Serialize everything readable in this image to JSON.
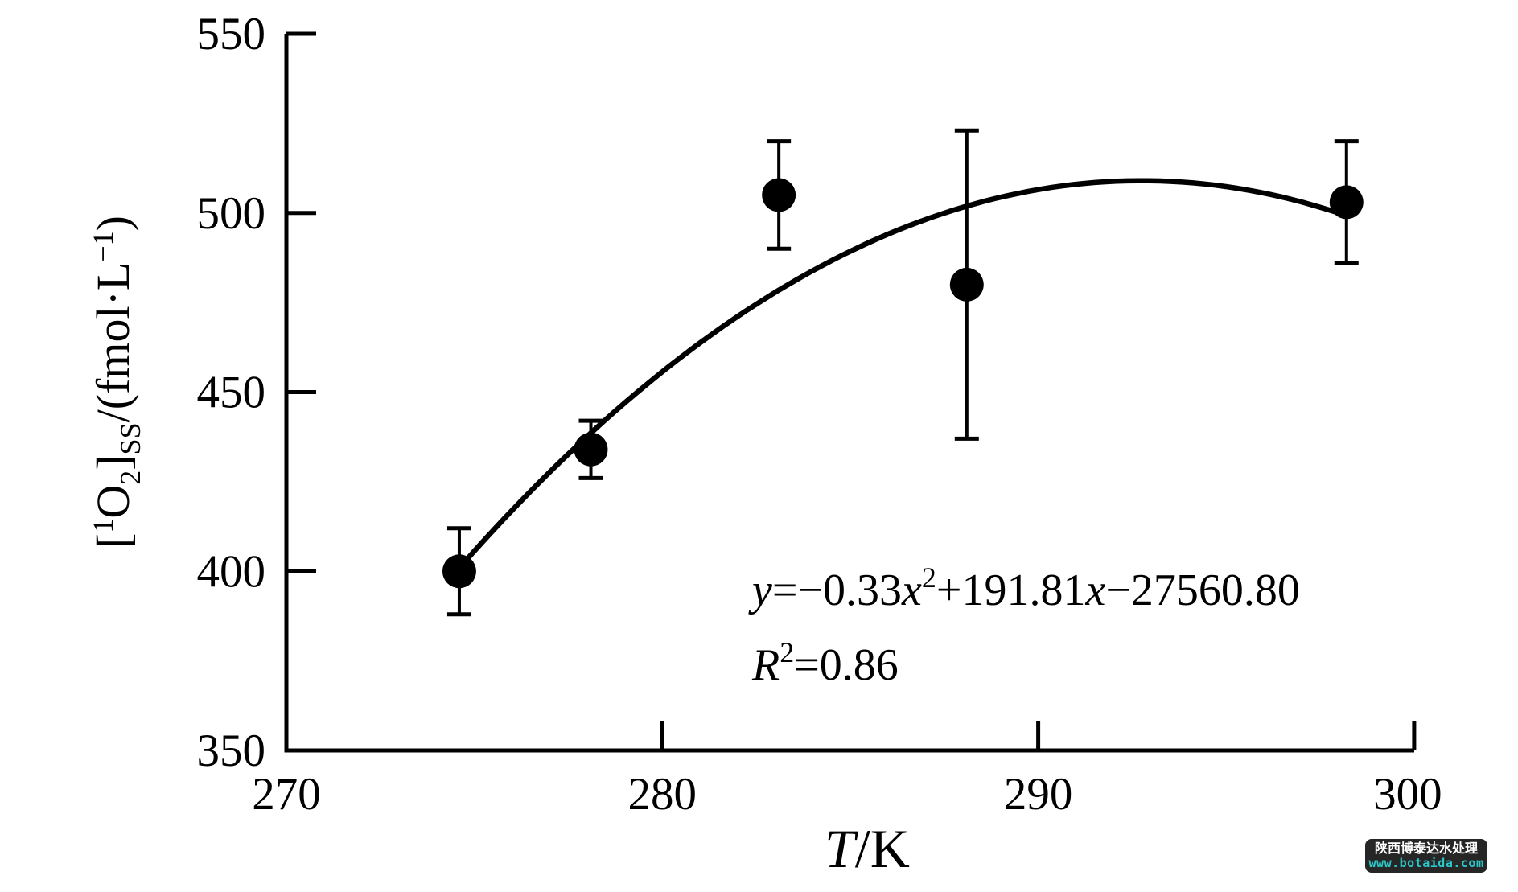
{
  "figure": {
    "background": "#ffffff",
    "ink_color": "#000000"
  },
  "chart_data": {
    "type": "scatter",
    "title": "",
    "xlabel": "T/K",
    "ylabel": "[1O2]SS/(fmol·L−1)",
    "xlim": [
      270,
      300
    ],
    "ylim": [
      350,
      550
    ],
    "grid": false,
    "legend": "none",
    "x": [
      274.6,
      278.1,
      283.1,
      288.1,
      298.2
    ],
    "y": [
      400,
      434,
      505,
      480,
      503
    ],
    "y_err": [
      12,
      8,
      15,
      43,
      17
    ],
    "x_ticks": [
      {
        "value": 270,
        "label": "270"
      },
      {
        "value": 280,
        "label": "280"
      },
      {
        "value": 290,
        "label": "290"
      },
      {
        "value": 300,
        "label": "300"
      }
    ],
    "y_ticks": [
      {
        "value": 350,
        "label": "350"
      },
      {
        "value": 400,
        "label": "400"
      },
      {
        "value": 450,
        "label": "450"
      },
      {
        "value": 500,
        "label": "500"
      },
      {
        "value": 550,
        "label": "550"
      }
    ],
    "fit_curve": {
      "type": "quadratic",
      "vertex_x": 292.75,
      "vertex_y": 509,
      "a": -0.328,
      "x_start": 274.65,
      "x_end": 297.9
    },
    "annotations": {
      "equation": {
        "v1": "y",
        "p1": "=−0.33",
        "v2": "x",
        "sup": "2",
        "p2": "+191.81",
        "v3": "x",
        "p3": "−27560.80"
      },
      "r_squared": {
        "base": "R",
        "sup": "2",
        "rest": "=0.86"
      }
    },
    "xlabel_parts": {
      "var": "T",
      "rest": "/K"
    },
    "ylabel_parts": {
      "open": "[",
      "sup1": "1",
      "o": "O",
      "sub2": "2",
      "close": "]",
      "subss": "SS",
      "mid": "/(fmol·L",
      "supm1": "−1",
      "end": ")"
    }
  },
  "watermark": {
    "line1": "陕西博泰达水处理",
    "line2": "www.botaida.com",
    "bg_color": "#262626",
    "line1_color": "#ffffff",
    "line2_color": "#2bc8ca"
  }
}
